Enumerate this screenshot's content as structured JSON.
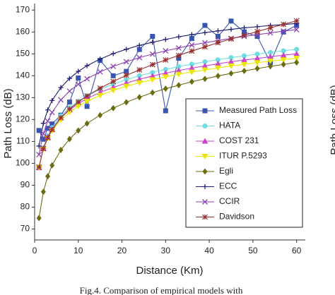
{
  "chart_data": {
    "type": "line",
    "xlabel": "Distance (Km)",
    "ylabel": "Path Loss (dB)",
    "caption": "Fig.4. Comparison of empirical models with",
    "side_label": "Path Loss (dB)",
    "x": [
      1,
      2,
      3,
      4,
      6,
      8,
      10,
      12,
      15,
      18,
      21,
      24,
      27,
      30,
      33,
      36,
      39,
      42,
      45,
      48,
      51,
      54,
      57,
      60
    ],
    "xlim": [
      0,
      62
    ],
    "xticks": [
      0,
      10,
      20,
      30,
      40,
      50,
      60
    ],
    "ylim": [
      65,
      173
    ],
    "yticks": [
      70,
      80,
      90,
      100,
      110,
      120,
      130,
      140,
      150,
      160,
      170
    ],
    "legend": "lower right",
    "series": [
      {
        "name": "Measured Path Loss",
        "color": "#3a55b0",
        "marker": "square",
        "values": [
          115,
          111,
          116,
          118,
          122,
          128,
          139,
          126,
          147,
          140,
          142,
          152,
          158,
          124,
          148,
          157,
          163,
          158,
          165,
          160,
          158,
          146,
          160,
          163
        ]
      },
      {
        "name": "HATA",
        "color": "#6fdde0",
        "marker": "circle",
        "values": [
          98,
          107.2,
          112.5,
          116.3,
          121.7,
          125.5,
          128.4,
          130.8,
          133.8,
          136.2,
          138.2,
          140.0,
          141.5,
          142.9,
          144.2,
          145.3,
          146.4,
          147.3,
          148.3,
          149.1,
          149.9,
          150.7,
          151.4,
          152.1
        ]
      },
      {
        "name": "COST 231",
        "color": "#cc44cc",
        "marker": "triangle",
        "values": [
          98,
          106.8,
          112.0,
          115.6,
          120.8,
          124.4,
          127.3,
          129.6,
          132.4,
          134.7,
          136.7,
          138.4,
          139.9,
          141.2,
          142.4,
          143.5,
          144.5,
          145.5,
          146.4,
          147.2,
          147.9,
          148.7,
          149.4,
          150.0
        ]
      },
      {
        "name": "ITUR P.5293",
        "color": "#e8e800",
        "marker": "triangle-down",
        "values": [
          98,
          106.5,
          111.4,
          114.9,
          119.9,
          123.4,
          126.1,
          128.3,
          131.0,
          133.3,
          135.2,
          136.8,
          138.2,
          139.5,
          140.7,
          141.7,
          142.7,
          143.6,
          144.5,
          145.2,
          146.0,
          146.7,
          147.3,
          148.0
        ]
      },
      {
        "name": "Egli",
        "color": "#6b6b10",
        "marker": "diamond",
        "values": [
          75,
          87.0,
          94.1,
          99.1,
          106.1,
          111.1,
          115,
          118.2,
          122.0,
          125.2,
          127.9,
          130.2,
          132.3,
          134.1,
          135.7,
          137.3,
          138.6,
          139.9,
          141.1,
          142.2,
          143.3,
          144.3,
          145.2,
          146.1
        ]
      },
      {
        "name": "ECC",
        "color": "#1c1c70",
        "marker": "plus",
        "values": [
          107.9,
          118.3,
          124.4,
          128.7,
          134.6,
          138.8,
          142.0,
          144.6,
          147.6,
          150.1,
          152.1,
          153.9,
          155.3,
          156.6,
          157.8,
          158.8,
          159.7,
          160.5,
          161.2,
          161.9,
          162.4,
          163.0,
          163.4,
          163.9
        ]
      },
      {
        "name": "CCIR",
        "color": "#8a44b0",
        "marker": "x",
        "values": [
          104,
          113.7,
          119.3,
          123.3,
          129.0,
          133.0,
          136.1,
          138.6,
          141.8,
          144.3,
          146.4,
          148.3,
          149.9,
          151.4,
          152.7,
          154.0,
          155.1,
          156.1,
          157.1,
          158.0,
          158.8,
          159.6,
          160.4,
          161.1
        ]
      },
      {
        "name": "Davidson",
        "color": "#993030",
        "marker": "asterisk",
        "values": [
          98.3,
          106.7,
          111.7,
          115.4,
          120.8,
          124.8,
          128.0,
          130.8,
          134.3,
          137.4,
          140.2,
          142.7,
          145.1,
          147.2,
          149.3,
          151.3,
          153.2,
          155.1,
          156.8,
          158.5,
          160.2,
          161.9,
          163.5,
          165.1
        ]
      }
    ]
  }
}
